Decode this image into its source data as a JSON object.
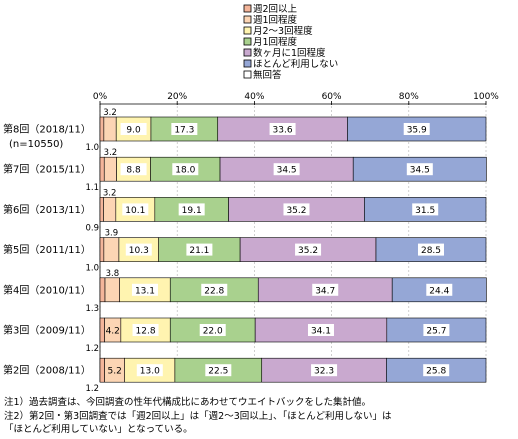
{
  "chart_data": {
    "type": "bar",
    "orientation": "horizontal",
    "stacked": true,
    "xlim": [
      0,
      100
    ],
    "x_ticks": [
      "0%",
      "20%",
      "40%",
      "60%",
      "80%",
      "100%"
    ],
    "legend_position": "top",
    "categories": [
      "第8回（2018/11）",
      "第7回（2015/11）",
      "第6回（2013/11）",
      "第5回（2011/11）",
      "第4回（2010/11）",
      "第3回（2009/11）",
      "第2回（2008/11）"
    ],
    "category_subtitles": [
      "(n=10550)",
      "",
      "",
      "",
      "",
      "",
      ""
    ],
    "series": [
      {
        "name": "週2回以上",
        "color": "#f4b59a",
        "values": [
          1.0,
          1.1,
          0.9,
          1.0,
          1.3,
          1.2,
          1.2
        ]
      },
      {
        "name": "週1回程度",
        "color": "#fcd5b4",
        "values": [
          3.2,
          3.2,
          3.2,
          3.9,
          3.8,
          4.2,
          5.2
        ]
      },
      {
        "name": "月2～3回程度",
        "color": "#fff4b0",
        "values": [
          9.0,
          8.8,
          10.1,
          10.3,
          13.1,
          12.8,
          13.0
        ]
      },
      {
        "name": "月1回程度",
        "color": "#a9d18e",
        "values": [
          17.3,
          18.0,
          19.1,
          21.1,
          22.8,
          22.0,
          22.5
        ]
      },
      {
        "name": "数ヶ月に1回程度",
        "color": "#c9a9cf",
        "values": [
          33.6,
          34.5,
          35.2,
          35.2,
          34.7,
          34.1,
          32.3
        ]
      },
      {
        "name": "ほとんど利用しない",
        "color": "#95a7d6",
        "values": [
          35.9,
          34.5,
          31.5,
          28.5,
          24.4,
          25.7,
          25.8
        ]
      },
      {
        "name": "無回答",
        "color": "#ffffff",
        "values": [
          0,
          0,
          0,
          0,
          0,
          0,
          0
        ]
      }
    ]
  },
  "notes": [
    "注1）過去調査は、今回調査の性年代構成比にあわせてウエイトバックをした集計値。",
    "注2）第2回・第3回調査では「週2回以上」は「週2～3回以上」、「ほとんど利用しない」は",
    "「ほとんど利用していない」となっている。"
  ]
}
